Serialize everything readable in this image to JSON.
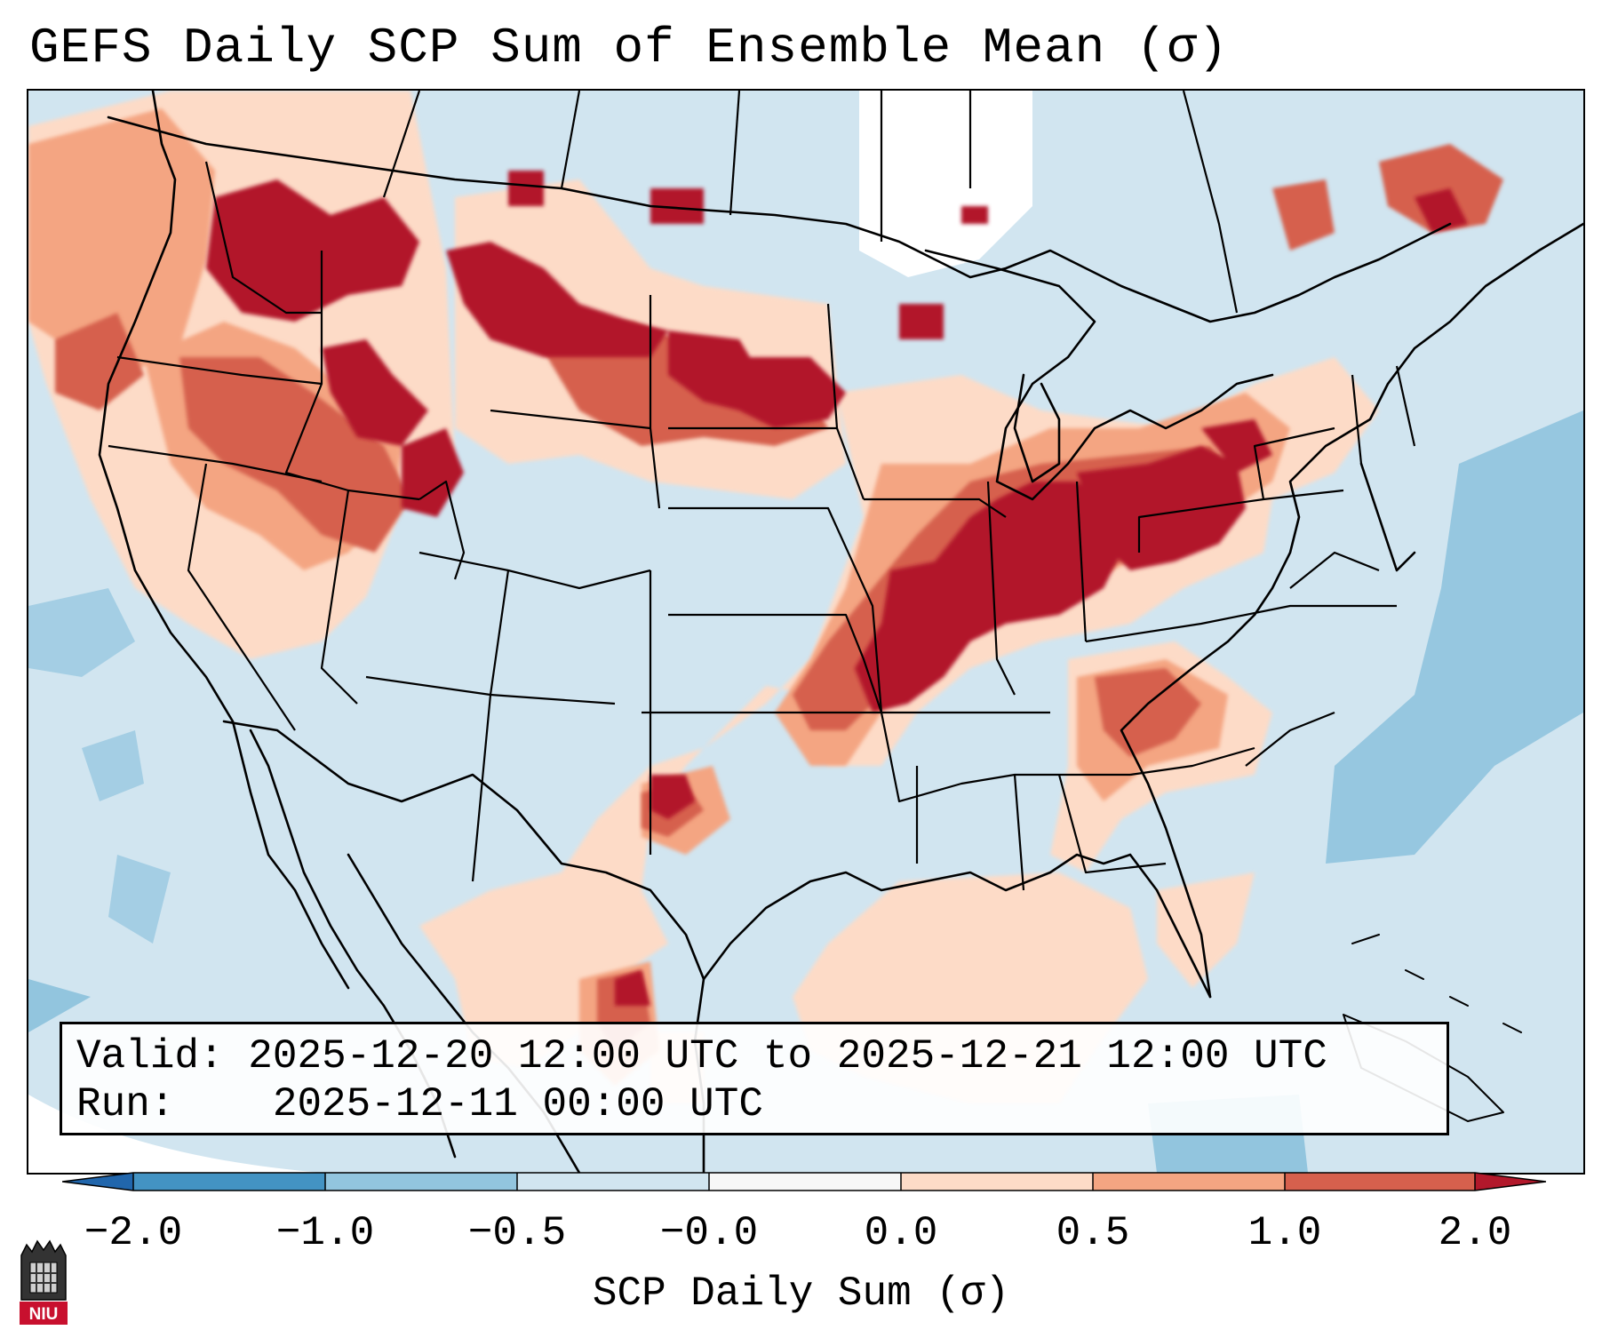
{
  "title": "GEFS Daily SCP Sum of Ensemble Mean (σ)",
  "info": {
    "valid_label": "Valid:",
    "valid_value": "2025-12-20 12:00 UTC to 2025-12-21 12:00 UTC",
    "run_label": "Run:",
    "run_value": "2025-12-11 00:00 UTC"
  },
  "colorbar": {
    "label": "SCP Daily Sum (σ)",
    "ticks": [
      "−2.0",
      "−1.0",
      "−0.5",
      "−0.0",
      "0.0",
      "0.5",
      "1.0",
      "2.0"
    ],
    "colors": [
      "#4393c3",
      "#92c5de",
      "#d1e5f0",
      "#f7f7f7",
      "#fddbc7",
      "#f4a582",
      "#d6604d",
      "#b2182b"
    ],
    "extend": "both"
  },
  "map": {
    "region": "Contiguous United States",
    "background_color": "#d1e5f0",
    "regions": [
      {
        "name": "Pacific Northwest",
        "level": "0.5 to 1.0"
      },
      {
        "name": "Northern Rockies / Montana",
        "level": "above 2.0"
      },
      {
        "name": "North Dakota / Minnesota",
        "level": "above 2.0"
      },
      {
        "name": "Ohio Valley",
        "level": "above 2.0"
      },
      {
        "name": "Mid-Mississippi Valley",
        "level": "above 2.0"
      },
      {
        "name": "Southern Plains",
        "level": "0.0 to 0.5"
      },
      {
        "name": "Southeast",
        "level": "0.5 to 1.0"
      },
      {
        "name": "Gulf of Mexico",
        "level": "0.0 to 0.5"
      },
      {
        "name": "Western Atlantic",
        "level": "-1.0 to -0.5"
      }
    ]
  },
  "logo": {
    "text": "NIU"
  }
}
